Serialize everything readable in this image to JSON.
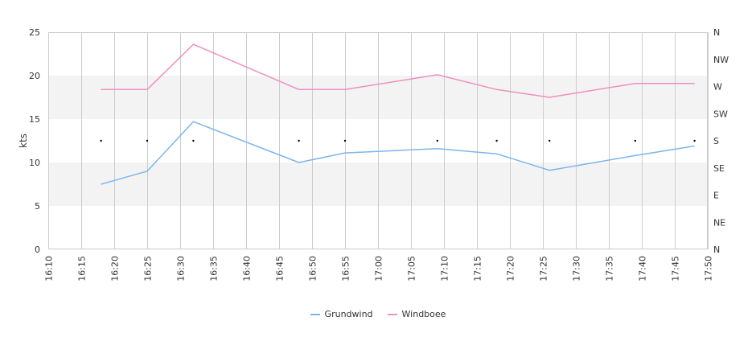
{
  "chart_data": {
    "type": "line",
    "ylabel": "kts",
    "ylim": [
      0,
      25
    ],
    "y_ticks": [
      0,
      5,
      10,
      15,
      20,
      25
    ],
    "y_bands": [
      [
        5,
        10
      ],
      [
        15,
        20
      ]
    ],
    "direction_axis": {
      "labels": [
        "N",
        "NE",
        "E",
        "SE",
        "S",
        "SW",
        "W",
        "NW",
        "N"
      ],
      "range": [
        0,
        360
      ]
    },
    "x_ticks": [
      "16:10",
      "16:15",
      "16:20",
      "16:25",
      "16:30",
      "16:35",
      "16:40",
      "16:45",
      "16:50",
      "16:55",
      "17:00",
      "17:05",
      "17:10",
      "17:15",
      "17:20",
      "17:25",
      "17:30",
      "17:35",
      "17:40",
      "17:45",
      "17:50"
    ],
    "xlim": [
      "16:10",
      "17:50"
    ],
    "x": [
      "16:18",
      "16:25",
      "16:32",
      "16:48",
      "16:55",
      "17:09",
      "17:18",
      "17:26",
      "17:39",
      "17:48"
    ],
    "series": [
      {
        "name": "Grundwind",
        "color": "#7cb5ec",
        "values": [
          7.5,
          9.0,
          14.7,
          10.0,
          11.1,
          11.6,
          11.0,
          9.1,
          10.8,
          11.9
        ]
      },
      {
        "name": "Windboee",
        "color": "#f08fbf",
        "values": [
          18.4,
          18.4,
          23.6,
          18.4,
          18.4,
          20.1,
          18.4,
          17.5,
          19.1,
          19.1
        ]
      }
    ],
    "direction_values": [
      180,
      180,
      180,
      180,
      180,
      180,
      180,
      180,
      180,
      180
    ],
    "grid": true,
    "legend": "bottom-center"
  }
}
